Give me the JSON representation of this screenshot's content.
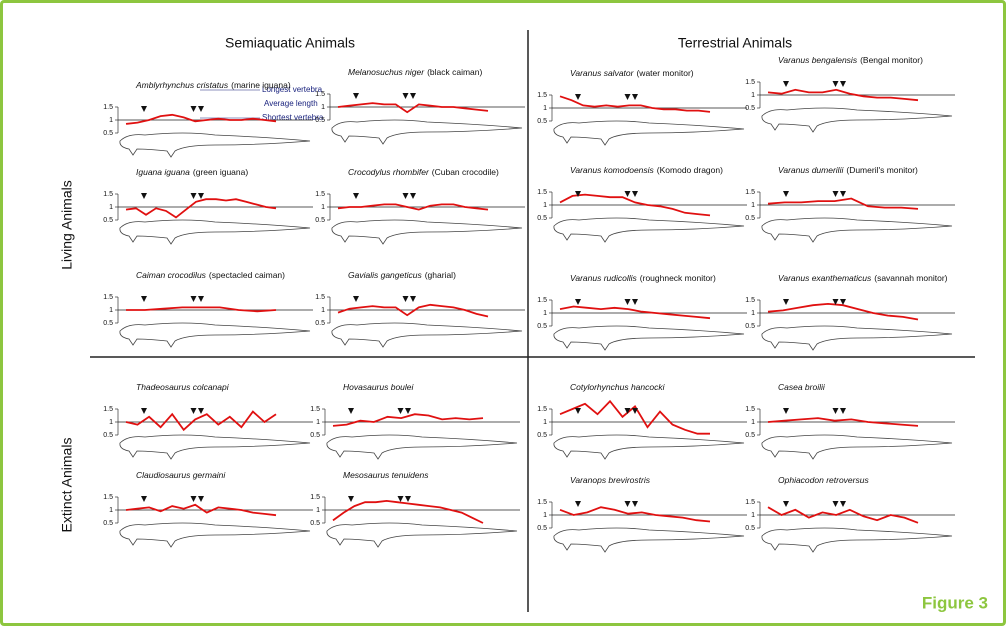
{
  "header": {
    "left": "Semiaquatic Animals",
    "right": "Terrestrial Animals"
  },
  "rows": {
    "living": "Living Animals",
    "extinct": "Extinct Animals"
  },
  "figure_label": "Figure 3",
  "yticks": [
    1.5,
    1,
    0.5
  ],
  "legend": {
    "longest": "Longest vertebra",
    "average": "Average length",
    "shortest": "Shortest vertebra"
  },
  "panels": [
    {
      "name": "Amblyrhynchus cristatus",
      "common": "(marine iguana)",
      "values": [
        0.85,
        0.9,
        1.0,
        1.15,
        1.2,
        1.1,
        0.95,
        1.0,
        1.05,
        1.0,
        1.0,
        1.05,
        1.0,
        0.95
      ]
    },
    {
      "name": "Melanosuchus niger",
      "common": "(black caiman)",
      "values": [
        1.0,
        1.05,
        1.1,
        1.15,
        1.1,
        1.1,
        0.8,
        1.1,
        1.05,
        1.0,
        1.0,
        0.95,
        0.9,
        0.85
      ]
    },
    {
      "name": "Iguana iguana",
      "common": "(green iguana)",
      "values": [
        0.9,
        0.95,
        0.7,
        0.95,
        0.85,
        0.6,
        0.9,
        1.2,
        1.3,
        1.3,
        1.25,
        1.3,
        1.2,
        1.1,
        1.0,
        0.95
      ]
    },
    {
      "name": "Crocodylus rhombifer",
      "common": "(Cuban crocodile)",
      "values": [
        0.95,
        1.0,
        1.0,
        1.05,
        1.1,
        1.1,
        1.0,
        0.9,
        1.05,
        1.1,
        1.1,
        1.0,
        0.95,
        0.9
      ]
    },
    {
      "name": "Caiman crocodilus",
      "common": "(spectacled caiman)",
      "values": [
        1.0,
        1.0,
        1.05,
        1.1,
        1.1,
        1.1,
        1.0,
        0.95,
        1.0
      ]
    },
    {
      "name": "Gavialis gangeticus",
      "common": "(gharial)",
      "values": [
        0.9,
        1.05,
        1.1,
        1.15,
        1.1,
        1.1,
        0.8,
        1.1,
        1.2,
        1.15,
        1.1,
        1.0,
        0.85,
        0.75
      ]
    },
    {
      "name": "Varanus salvator",
      "common": "(water monitor)",
      "values": [
        1.45,
        1.3,
        1.1,
        1.05,
        1.1,
        1.05,
        1.1,
        1.1,
        1.0,
        0.95,
        0.95,
        0.9,
        0.9,
        0.85
      ]
    },
    {
      "name": "Varanus bengalensis",
      "common": "(Bengal monitor)",
      "values": [
        1.1,
        1.05,
        1.2,
        1.1,
        1.1,
        1.2,
        1.05,
        0.95,
        0.9,
        0.9,
        0.85,
        0.8
      ]
    },
    {
      "name": "Varanus komodoensis",
      "common": "(Komodo dragon)",
      "values": [
        1.1,
        1.35,
        1.4,
        1.35,
        1.3,
        1.3,
        1.1,
        1.0,
        0.95,
        0.85,
        0.7,
        0.65,
        0.6
      ]
    },
    {
      "name": "Varanus dumerilii",
      "common": "(Dumeril's monitor)",
      "values": [
        1.05,
        1.1,
        1.1,
        1.15,
        1.15,
        1.25,
        0.95,
        0.9,
        0.9,
        0.85
      ]
    },
    {
      "name": "Varanus rudicollis",
      "common": "(roughneck monitor)",
      "values": [
        1.15,
        1.25,
        1.2,
        1.15,
        1.2,
        1.15,
        1.05,
        1.0,
        0.95,
        0.9,
        0.85,
        0.8
      ]
    },
    {
      "name": "Varanus exanthematicus",
      "common": "(savannah monitor)",
      "values": [
        1.05,
        1.1,
        1.2,
        1.3,
        1.35,
        1.3,
        1.15,
        1.0,
        0.9,
        0.85,
        0.75
      ]
    },
    {
      "name": "Thadeosaurus colcanapi",
      "values": [
        1.0,
        0.9,
        1.2,
        0.8,
        1.3,
        0.7,
        1.1,
        1.3,
        0.9,
        1.2,
        0.8,
        1.4,
        1.0,
        1.3
      ]
    },
    {
      "name": "Hovasaurus boulei",
      "values": [
        0.85,
        0.9,
        1.05,
        1.0,
        1.2,
        1.15,
        1.3,
        1.25,
        1.1,
        1.15,
        1.1,
        1.15
      ]
    },
    {
      "name": "Claudiosaurus germaini",
      "values": [
        1.0,
        1.05,
        1.1,
        0.95,
        1.15,
        1.05,
        1.2,
        0.9,
        1.1,
        1.05,
        1.0,
        0.9,
        0.85,
        0.8
      ]
    },
    {
      "name": "Mesosaurus tenuidens",
      "values": [
        0.6,
        0.9,
        1.15,
        1.3,
        1.3,
        1.35,
        1.3,
        1.25,
        1.2,
        1.15,
        1.1,
        1.0,
        0.9,
        0.7,
        0.5
      ]
    },
    {
      "name": "Cotylorhynchus hancocki",
      "values": [
        1.3,
        1.5,
        1.7,
        1.3,
        1.8,
        1.2,
        1.6,
        0.8,
        1.4,
        0.9,
        0.7,
        0.55,
        0.55
      ]
    },
    {
      "name": "Casea broilii",
      "values": [
        1.0,
        1.05,
        1.1,
        1.15,
        1.05,
        1.1,
        1.0,
        0.95,
        0.9,
        0.85
      ]
    },
    {
      "name": "Varanops brevirostris",
      "values": [
        1.2,
        1.0,
        1.1,
        1.3,
        1.2,
        1.05,
        1.1,
        1.0,
        0.95,
        0.9,
        0.8,
        0.75
      ]
    },
    {
      "name": "Ophiacodon retroversus",
      "values": [
        1.3,
        1.0,
        1.2,
        0.9,
        1.1,
        1.0,
        1.2,
        0.95,
        0.8,
        1.0,
        0.9,
        0.7
      ]
    }
  ]
}
